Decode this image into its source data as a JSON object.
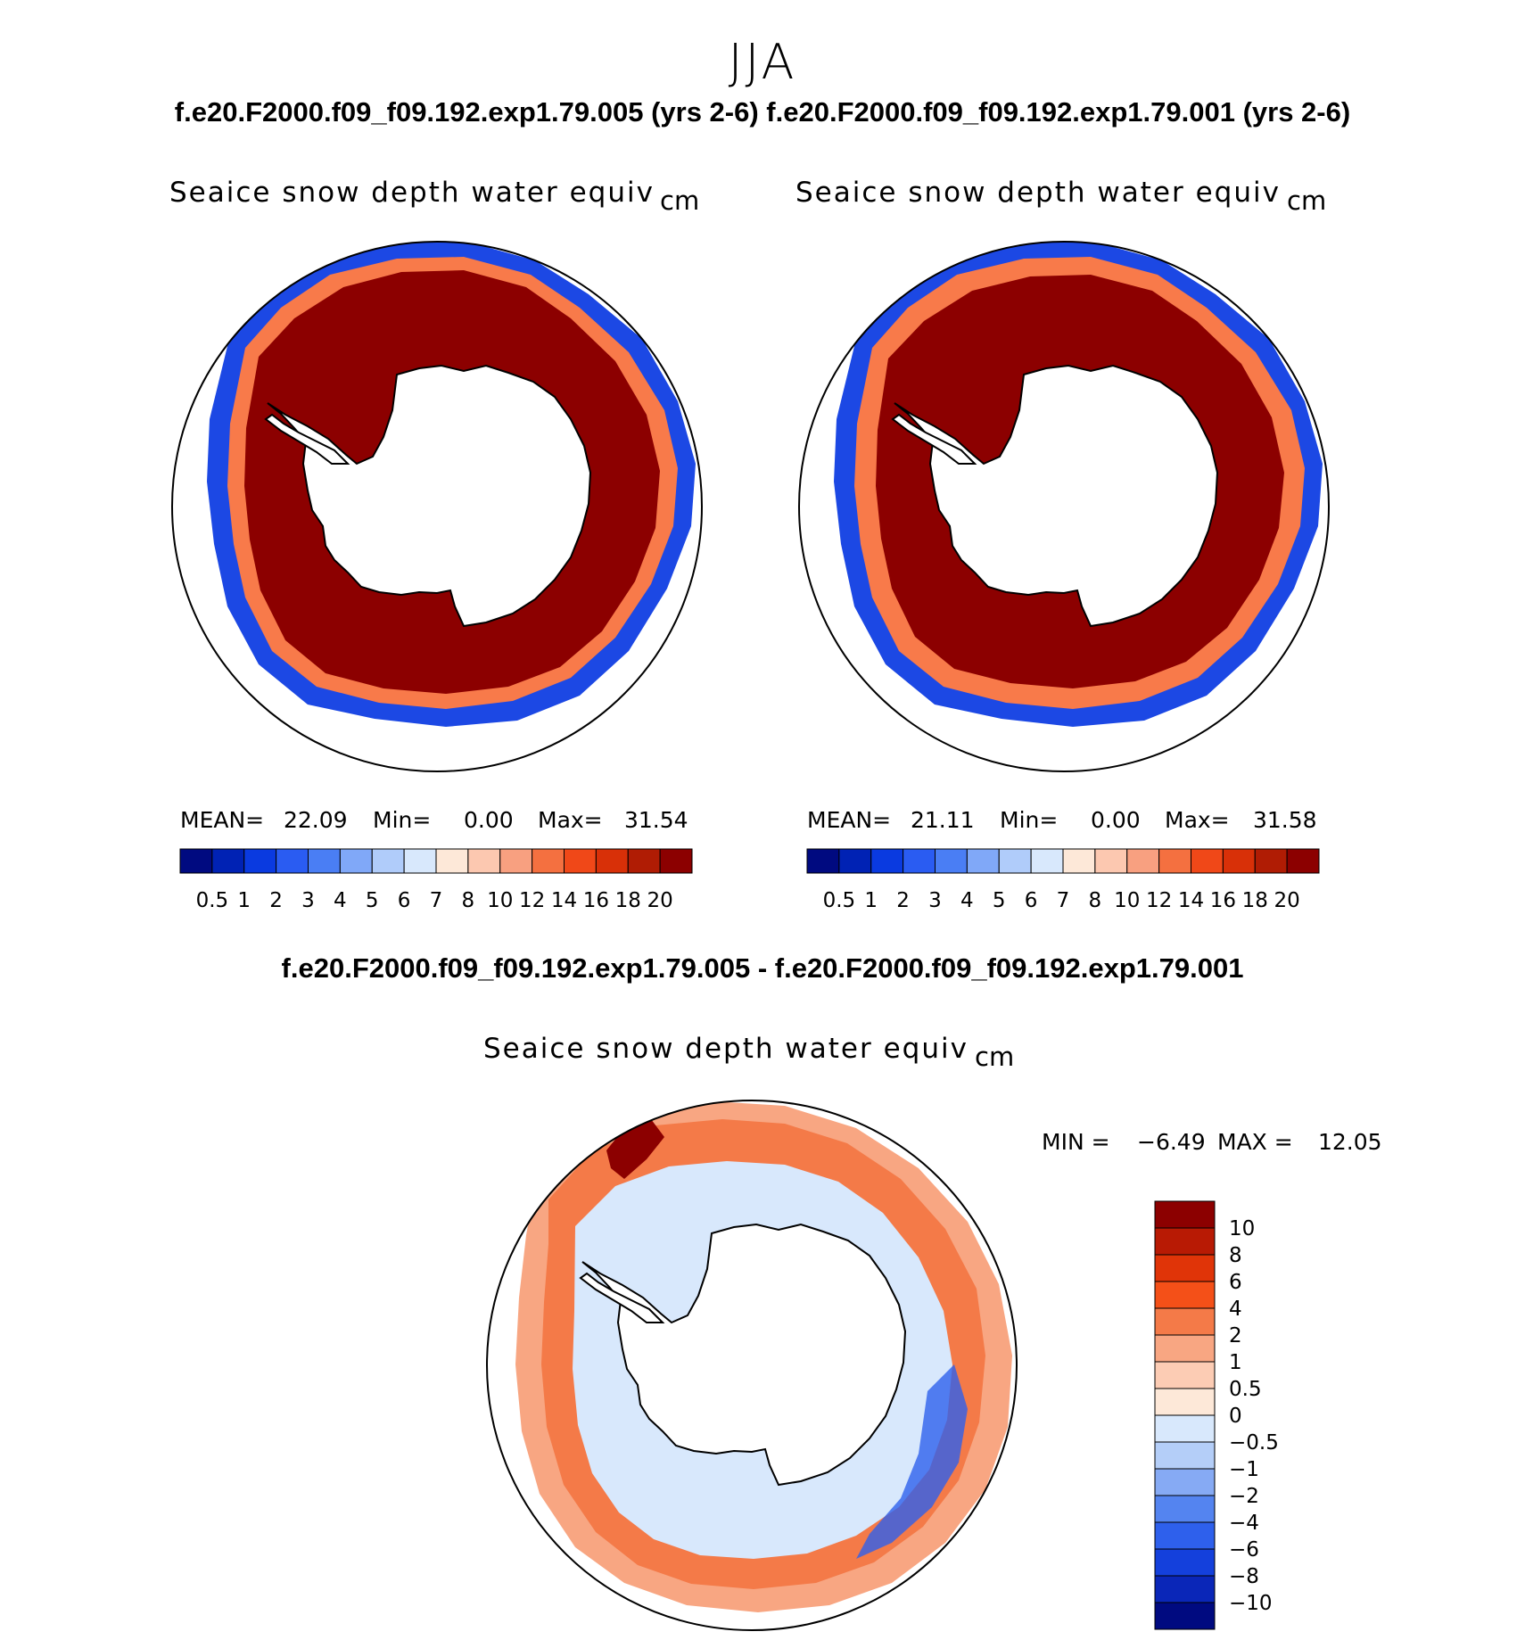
{
  "season": "JJA",
  "top_title": "f.e20.F2000.f09_f09.192.exp1.79.005 (yrs 2-6) f.e20.F2000.f09_f09.192.exp1.79.001 (yrs 2-6)",
  "diff_title": "f.e20.F2000.f09_f09.192.exp1.79.005 - f.e20.F2000.f09_f09.192.exp1.79.001",
  "panels": [
    {
      "var": "Seaice snow depth water equiv",
      "unit": "cm",
      "mean_label": "MEAN=",
      "mean": "22.09",
      "min_label": "Min=",
      "min": "0.00",
      "max_label": "Max=",
      "max": "31.54"
    },
    {
      "var": "Seaice snow depth water equiv",
      "unit": "cm",
      "mean_label": "MEAN=",
      "mean": "21.11",
      "min_label": "Min=",
      "min": "0.00",
      "max_label": "Max=",
      "max": "31.58"
    }
  ],
  "diff_panel": {
    "var": "Seaice snow depth water equiv",
    "unit": "cm",
    "min_label": "MIN =",
    "min": "−6.49",
    "max_label": "MAX =",
    "max": "12.05"
  },
  "abs_colorbar": {
    "colors": [
      "#000a80",
      "#0022b4",
      "#0a3ae0",
      "#2a5cf2",
      "#4a7ef4",
      "#80a8f8",
      "#b0ccfa",
      "#d8e8fc",
      "#fde8d8",
      "#fcc8b0",
      "#f8a080",
      "#f47040",
      "#f04818",
      "#d83008",
      "#b01c04",
      "#8c0000"
    ],
    "ticks": [
      "0.5",
      "1",
      "2",
      "3",
      "4",
      "5",
      "6",
      "7",
      "8",
      "10",
      "12",
      "14",
      "16",
      "18",
      "20"
    ]
  },
  "diff_colorbar": {
    "colors_top_to_bottom": [
      "#8c0000",
      "#b81a04",
      "#e03408",
      "#f45018",
      "#f47a48",
      "#f8a682",
      "#fcccb4",
      "#fde8d8",
      "#d8e8fc",
      "#b4cef8",
      "#86aaf4",
      "#5484f0",
      "#2e60ec",
      "#1440dc",
      "#0a26b8",
      "#000a80"
    ],
    "ticks": [
      "10",
      "8",
      "6",
      "4",
      "2",
      "1",
      "0.5",
      "0",
      "−0.5",
      "−1",
      "−2",
      "−4",
      "−6",
      "−8",
      "−10"
    ]
  }
}
